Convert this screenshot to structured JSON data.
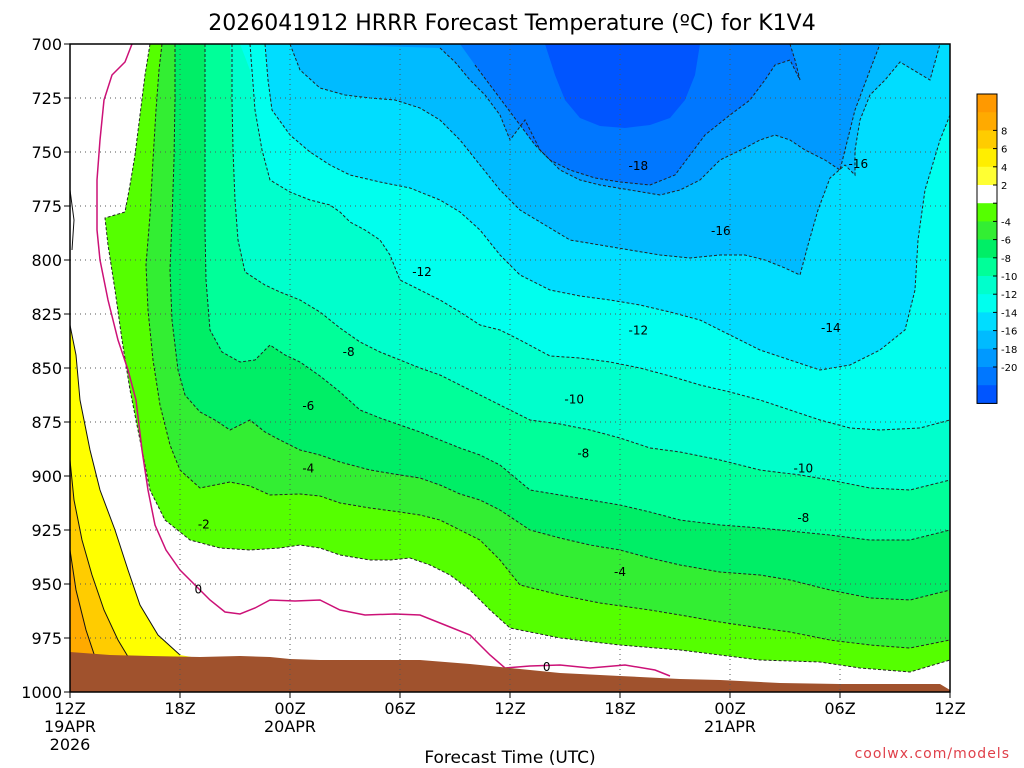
{
  "chart_data": {
    "type": "heatmap",
    "title": "2026041912 HRRR Forecast Temperature (ºC) for K1V4",
    "xlabel": "Forecast Time (UTC)",
    "ylabel": "",
    "credit": "coolwx.com/models",
    "y_ticks": [
      "700",
      "725",
      "750",
      "775",
      "800",
      "825",
      "850",
      "875",
      "900",
      "925",
      "950",
      "975",
      "1000"
    ],
    "y_range": [
      700,
      1000
    ],
    "x_range_hours": [
      0,
      48
    ],
    "x_ticks": [
      {
        "label": "12Z",
        "date": "19APR",
        "year": "2026"
      },
      {
        "label": "18Z",
        "date": "",
        "year": ""
      },
      {
        "label": "00Z",
        "date": "20APR",
        "year": ""
      },
      {
        "label": "06Z",
        "date": "",
        "year": ""
      },
      {
        "label": "12Z",
        "date": "",
        "year": ""
      },
      {
        "label": "18Z",
        "date": "",
        "year": ""
      },
      {
        "label": "00Z",
        "date": "21APR",
        "year": ""
      },
      {
        "label": "06Z",
        "date": "",
        "year": ""
      },
      {
        "label": "12Z",
        "date": "",
        "year": ""
      }
    ],
    "grid": true,
    "colorbar": {
      "labels": [
        "8",
        "6",
        "4",
        "2",
        "",
        "-4",
        "-6",
        "-8",
        "-10",
        "-12",
        "-14",
        "-16",
        "-18",
        "-20"
      ],
      "colors": [
        "#ff9900",
        "#ffaa00",
        "#ffcc00",
        "#ffee00",
        "#ffff33",
        "#ffffff",
        "#55ff00",
        "#33ee33",
        "#00ee66",
        "#00ff99",
        "#00ffcc",
        "#00ffee",
        "#00ddff",
        "#00bbff",
        "#0099ff",
        "#0077ff",
        "#0055ff"
      ]
    },
    "contour_labels": [
      {
        "text": "-18",
        "t": 31.0,
        "p": 757
      },
      {
        "text": "-16",
        "t": 43.0,
        "p": 756
      },
      {
        "text": "-16",
        "t": 35.5,
        "p": 787
      },
      {
        "text": "-14",
        "t": 41.5,
        "p": 832
      },
      {
        "text": "-12",
        "t": 19.2,
        "p": 806
      },
      {
        "text": "-12",
        "t": 31.0,
        "p": 833
      },
      {
        "text": "-10",
        "t": 27.5,
        "p": 865
      },
      {
        "text": "-10",
        "t": 40.0,
        "p": 897
      },
      {
        "text": "-8",
        "t": 15.2,
        "p": 843
      },
      {
        "text": "-8",
        "t": 28.0,
        "p": 890
      },
      {
        "text": "-8",
        "t": 40.0,
        "p": 920
      },
      {
        "text": "-6",
        "t": 13.0,
        "p": 868
      },
      {
        "text": "-4",
        "t": 13.0,
        "p": 897
      },
      {
        "text": "-4",
        "t": 30.0,
        "p": 945
      },
      {
        "text": "-2",
        "t": 7.3,
        "p": 923
      },
      {
        "text": "0",
        "t": 7.0,
        "p": 953
      },
      {
        "text": "0",
        "t": 26.0,
        "p": 989
      }
    ]
  }
}
